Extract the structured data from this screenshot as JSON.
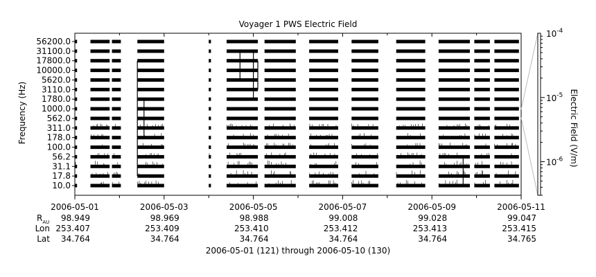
{
  "chart_data": {
    "type": "heatmap",
    "title": "Voyager 1 PWS Electric Field",
    "ylabel": "Frequency (Hz)",
    "colorbar_label": "Electric Field (V/m)",
    "colorbar_ticks": [
      {
        "base": "10",
        "exp": "-4"
      },
      {
        "base": "10",
        "exp": "-5"
      },
      {
        "base": "10",
        "exp": "-6"
      }
    ],
    "colorbar_range": [
      3e-07,
      0.0001
    ],
    "y_ticks": [
      "56200.0",
      "31100.0",
      "17800.0",
      "10000.0",
      "5620.0",
      "3110.0",
      "1780.0",
      "1000.0",
      "562.0",
      "311.0",
      "178.0",
      "100.0",
      "56.2",
      "31.1",
      "17.8",
      "10.0"
    ],
    "x_ticks": [
      "2006-05-01",
      "2006-05-03",
      "2006-05-05",
      "2006-05-07",
      "2006-05-09",
      "2006-05-11"
    ],
    "x_range_days": [
      0,
      10
    ],
    "row_labels": {
      "rau": [
        "R",
        "AU"
      ],
      "lon": "Lon",
      "lat": "Lat"
    },
    "ephemeris": {
      "rau": [
        "98.949",
        "98.969",
        "98.988",
        "99.008",
        "99.028",
        "99.047"
      ],
      "lon": [
        "253.407",
        "253.409",
        "253.410",
        "253.412",
        "253.413",
        "253.415"
      ],
      "lat": [
        "34.764",
        "34.764",
        "34.764",
        "34.764",
        "34.764",
        "34.765"
      ]
    },
    "footer": "2006-05-01 (121) through 2006-05-10 (130)",
    "data_segments_days": [
      [
        0.0,
        0.05
      ],
      [
        0.35,
        0.78
      ],
      [
        0.83,
        1.03
      ],
      [
        1.4,
        2.0
      ],
      [
        3.0,
        3.05
      ],
      [
        3.4,
        4.1
      ],
      [
        4.25,
        4.95
      ],
      [
        5.25,
        5.9
      ],
      [
        6.2,
        6.8
      ],
      [
        7.2,
        7.85
      ],
      [
        8.15,
        8.85
      ],
      [
        8.95,
        9.3
      ],
      [
        9.4,
        9.95
      ]
    ],
    "bursts": [
      {
        "day": 1.4,
        "low_ch": 2,
        "high_ch": 14
      },
      {
        "day": 1.55,
        "low_ch": 6,
        "high_ch": 10
      },
      {
        "day": 3.7,
        "low_ch": 1,
        "high_ch": 4
      },
      {
        "day": 4.0,
        "low_ch": 1,
        "high_ch": 6
      },
      {
        "day": 4.1,
        "low_ch": 2,
        "high_ch": 5
      },
      {
        "day": 8.7,
        "low_ch": 12,
        "high_ch": 15
      }
    ]
  }
}
